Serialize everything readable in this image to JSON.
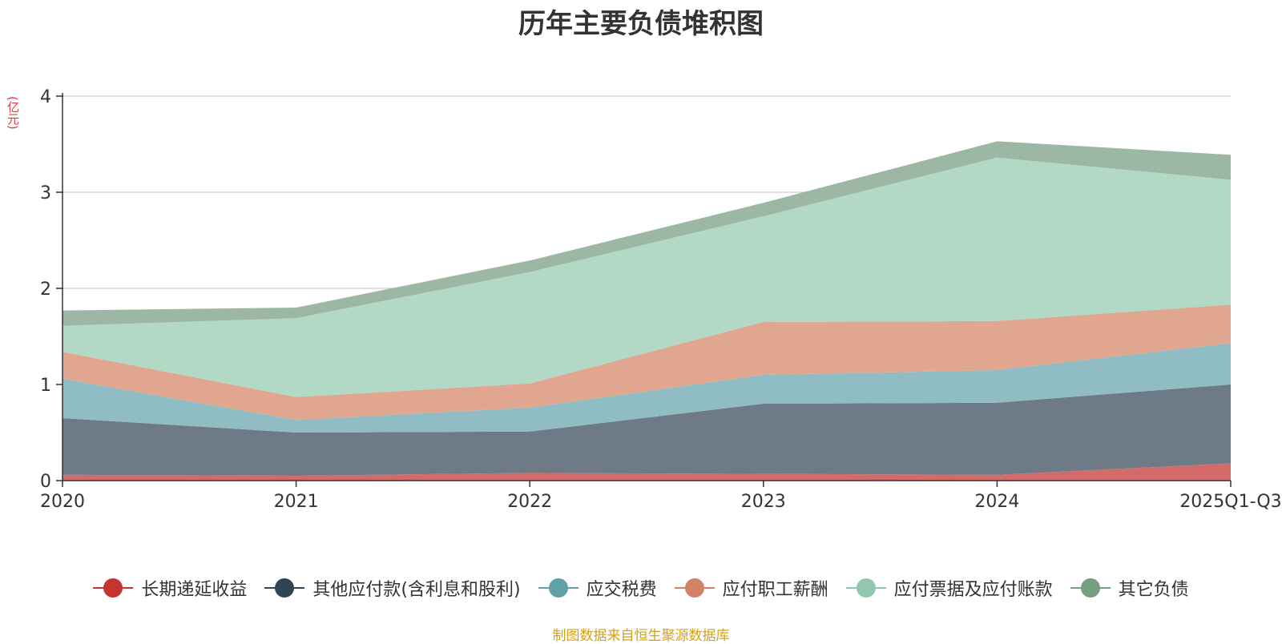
{
  "chart_data": {
    "type": "area",
    "stacked": true,
    "title": "历年主要负债堆积图",
    "ylabel": "(亿元)",
    "ylim": [
      0,
      4
    ],
    "yticks": [
      "0",
      "1",
      "2",
      "3",
      "4"
    ],
    "categories": [
      "2020",
      "2021",
      "2022",
      "2023",
      "2024",
      "2025Q1-Q3"
    ],
    "series": [
      {
        "name": "长期递延收益",
        "color": "#c23531",
        "fill": "#d46b6b",
        "values": [
          0.06,
          0.05,
          0.08,
          0.07,
          0.06,
          0.18
        ]
      },
      {
        "name": "其他应付款(含利息和股利)",
        "color": "#2f4554",
        "fill": "#6e7b86",
        "values": [
          0.59,
          0.45,
          0.43,
          0.73,
          0.75,
          0.82
        ]
      },
      {
        "name": "应交税费",
        "color": "#61a0a8",
        "fill": "#90bcc3",
        "values": [
          0.41,
          0.13,
          0.25,
          0.3,
          0.34,
          0.43
        ]
      },
      {
        "name": "应付职工薪酬",
        "color": "#d48265",
        "fill": "#e0a690",
        "values": [
          0.28,
          0.24,
          0.25,
          0.55,
          0.51,
          0.4
        ]
      },
      {
        "name": "应付票据及应付账款",
        "color": "#91c7ae",
        "fill": "#b2d8c6",
        "values": [
          0.27,
          0.82,
          1.16,
          1.1,
          1.7,
          1.3
        ]
      },
      {
        "name": "其它负债",
        "color": "#749f83",
        "fill": "#9cb8a4",
        "values": [
          0.16,
          0.11,
          0.12,
          0.14,
          0.17,
          0.26
        ]
      }
    ],
    "legend_position": "bottom",
    "grid": true
  },
  "source_note": "制图数据来自恒生聚源数据库"
}
